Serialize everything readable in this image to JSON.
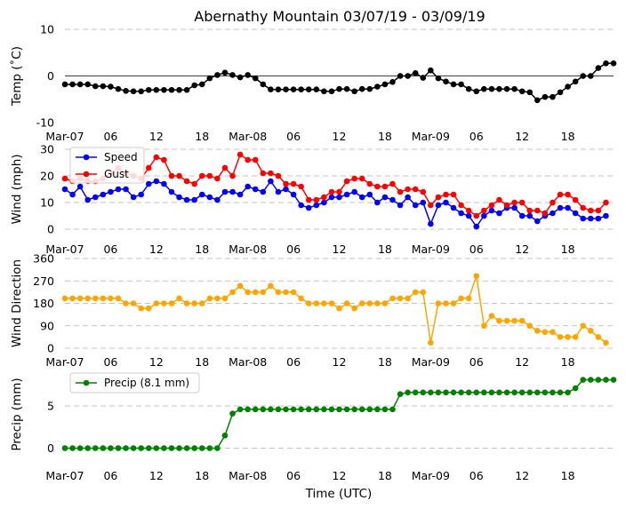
{
  "chart_data": {
    "type": "line",
    "title": "Abernathy Mountain 03/07/19 - 03/09/19",
    "xlabel": "Time (UTC)",
    "x_hours_range": [
      0,
      72
    ],
    "x_ticks": [
      {
        "h": 0,
        "label": "Mar-07"
      },
      {
        "h": 6,
        "label": "06"
      },
      {
        "h": 12,
        "label": "12"
      },
      {
        "h": 18,
        "label": "18"
      },
      {
        "h": 24,
        "label": "Mar-08"
      },
      {
        "h": 30,
        "label": "06"
      },
      {
        "h": 36,
        "label": "12"
      },
      {
        "h": 42,
        "label": "18"
      },
      {
        "h": 48,
        "label": "Mar-09"
      },
      {
        "h": 54,
        "label": "06"
      },
      {
        "h": 60,
        "label": "12"
      },
      {
        "h": 66,
        "label": "18"
      }
    ],
    "sample_interval_hours": 1,
    "panels": [
      {
        "id": "temp",
        "ylabel": "Temp (˚C)",
        "ylim": [
          -10,
          10
        ],
        "yticks": [
          10,
          0,
          -10
        ],
        "zero_line": true,
        "grid_values": [
          10
        ],
        "series": [
          {
            "name": "Temp",
            "color": "#000000",
            "values": [
              -1.8,
              -1.8,
              -1.8,
              -1.8,
              -2.2,
              -2.2,
              -2.3,
              -2.8,
              -3.2,
              -3.3,
              -3.3,
              -3,
              -3,
              -3,
              -3,
              -3,
              -3,
              -2,
              -1.8,
              -0.5,
              0.2,
              0.7,
              0.2,
              -0.3,
              0.2,
              -0.5,
              -1.8,
              -2.9,
              -2.9,
              -2.9,
              -2.9,
              -2.9,
              -2.9,
              -2.9,
              -3.3,
              -3.3,
              -2.8,
              -2.8,
              -3.3,
              -2.8,
              -2.8,
              -2.3,
              -1.8,
              -1.3,
              0,
              0,
              0.6,
              -0.4,
              1.2,
              -0.5,
              -1.2,
              -1.8,
              -1.8,
              -2.8,
              -3.3,
              -2.8,
              -2.8,
              -2.8,
              -2.8,
              -2.8,
              -3.3,
              -3.5,
              -5.2,
              -4.5,
              -4.5,
              -3.5,
              -2.3,
              -1.2,
              0,
              0,
              1.7,
              2.7,
              2.7
            ]
          }
        ]
      },
      {
        "id": "wind",
        "ylabel": "Wind (mph)",
        "ylim": [
          0,
          30
        ],
        "yticks": [
          30,
          20,
          10,
          0
        ],
        "grid_values": [
          30,
          20,
          10,
          0
        ],
        "legend": [
          "Speed",
          "Gust"
        ],
        "series": [
          {
            "name": "Speed",
            "color": "#0000ff",
            "values": [
              15,
              13,
              16,
              11,
              12,
              13,
              14,
              15,
              15,
              12,
              13,
              17,
              18,
              17,
              14,
              12,
              11,
              11,
              13,
              12,
              11,
              14,
              14,
              13,
              16,
              15,
              14,
              18,
              14,
              15,
              13,
              9,
              8,
              9,
              10,
              12,
              12,
              13,
              14,
              12,
              13,
              10,
              12,
              11,
              9,
              12,
              9,
              10,
              2,
              9,
              10,
              8,
              6,
              5,
              1,
              5,
              7,
              6,
              8,
              8,
              5,
              5,
              3,
              5,
              6,
              8,
              8,
              6,
              4,
              4,
              4,
              5
            ]
          },
          {
            "name": "Gust",
            "color": "#ff0000",
            "values": [
              19,
              18,
              19,
              18,
              18,
              19,
              21,
              23,
              21,
              20,
              19,
              23,
              27,
              26,
              20,
              20,
              18,
              17,
              20,
              20,
              19,
              23,
              20,
              28,
              26,
              26,
              21,
              21,
              20,
              17,
              17,
              16,
              11,
              11,
              12,
              14,
              14,
              18,
              19,
              19,
              17,
              16,
              16,
              17,
              14,
              15,
              15,
              14,
              9,
              12,
              13,
              13,
              9,
              7,
              5,
              7,
              9,
              11,
              9,
              10,
              10,
              7,
              7,
              6,
              10,
              13,
              13,
              11,
              8,
              7,
              7,
              10
            ]
          }
        ]
      },
      {
        "id": "dir",
        "ylabel": "Wind Direction",
        "ylim": [
          0,
          360
        ],
        "yticks": [
          360,
          270,
          180,
          90,
          0
        ],
        "grid_values": [
          360,
          270,
          180,
          90,
          0
        ],
        "series": [
          {
            "name": "Direction",
            "color": "#ffa500",
            "values": [
              200,
              200,
              200,
              200,
              200,
              200,
              200,
              200,
              180,
              180,
              160,
              160,
              180,
              180,
              180,
              200,
              180,
              180,
              180,
              200,
              200,
              200,
              225,
              250,
              225,
              225,
              225,
              250,
              225,
              225,
              225,
              200,
              180,
              180,
              180,
              180,
              160,
              180,
              160,
              180,
              180,
              180,
              180,
              200,
              200,
              200,
              225,
              225,
              22,
              180,
              180,
              180,
              200,
              200,
              290,
              90,
              130,
              110,
              110,
              110,
              110,
              90,
              70,
              65,
              65,
              45,
              45,
              45,
              90,
              70,
              45,
              22
            ]
          }
        ]
      },
      {
        "id": "precip",
        "ylabel": "Precip (mm)",
        "ylim": [
          -1,
          9
        ],
        "yticks": [
          5,
          0
        ],
        "grid_values": [
          5,
          0
        ],
        "legend": [
          "Precip (8.1 mm)"
        ],
        "series": [
          {
            "name": "Precip (8.1 mm)",
            "color": "#008000",
            "values": [
              0,
              0,
              0,
              0,
              0,
              0,
              0,
              0,
              0,
              0,
              0,
              0,
              0,
              0,
              0,
              0,
              0,
              0,
              0,
              0,
              0,
              1.5,
              4.1,
              4.6,
              4.6,
              4.6,
              4.6,
              4.6,
              4.6,
              4.6,
              4.6,
              4.6,
              4.6,
              4.6,
              4.6,
              4.6,
              4.6,
              4.6,
              4.6,
              4.6,
              4.6,
              4.6,
              4.6,
              4.6,
              6.4,
              6.6,
              6.6,
              6.6,
              6.6,
              6.6,
              6.6,
              6.6,
              6.6,
              6.6,
              6.6,
              6.6,
              6.6,
              6.6,
              6.6,
              6.6,
              6.6,
              6.6,
              6.6,
              6.6,
              6.6,
              6.6,
              6.6,
              7.1,
              8.1,
              8.1,
              8.1,
              8.1,
              8.1
            ]
          }
        ]
      }
    ]
  }
}
